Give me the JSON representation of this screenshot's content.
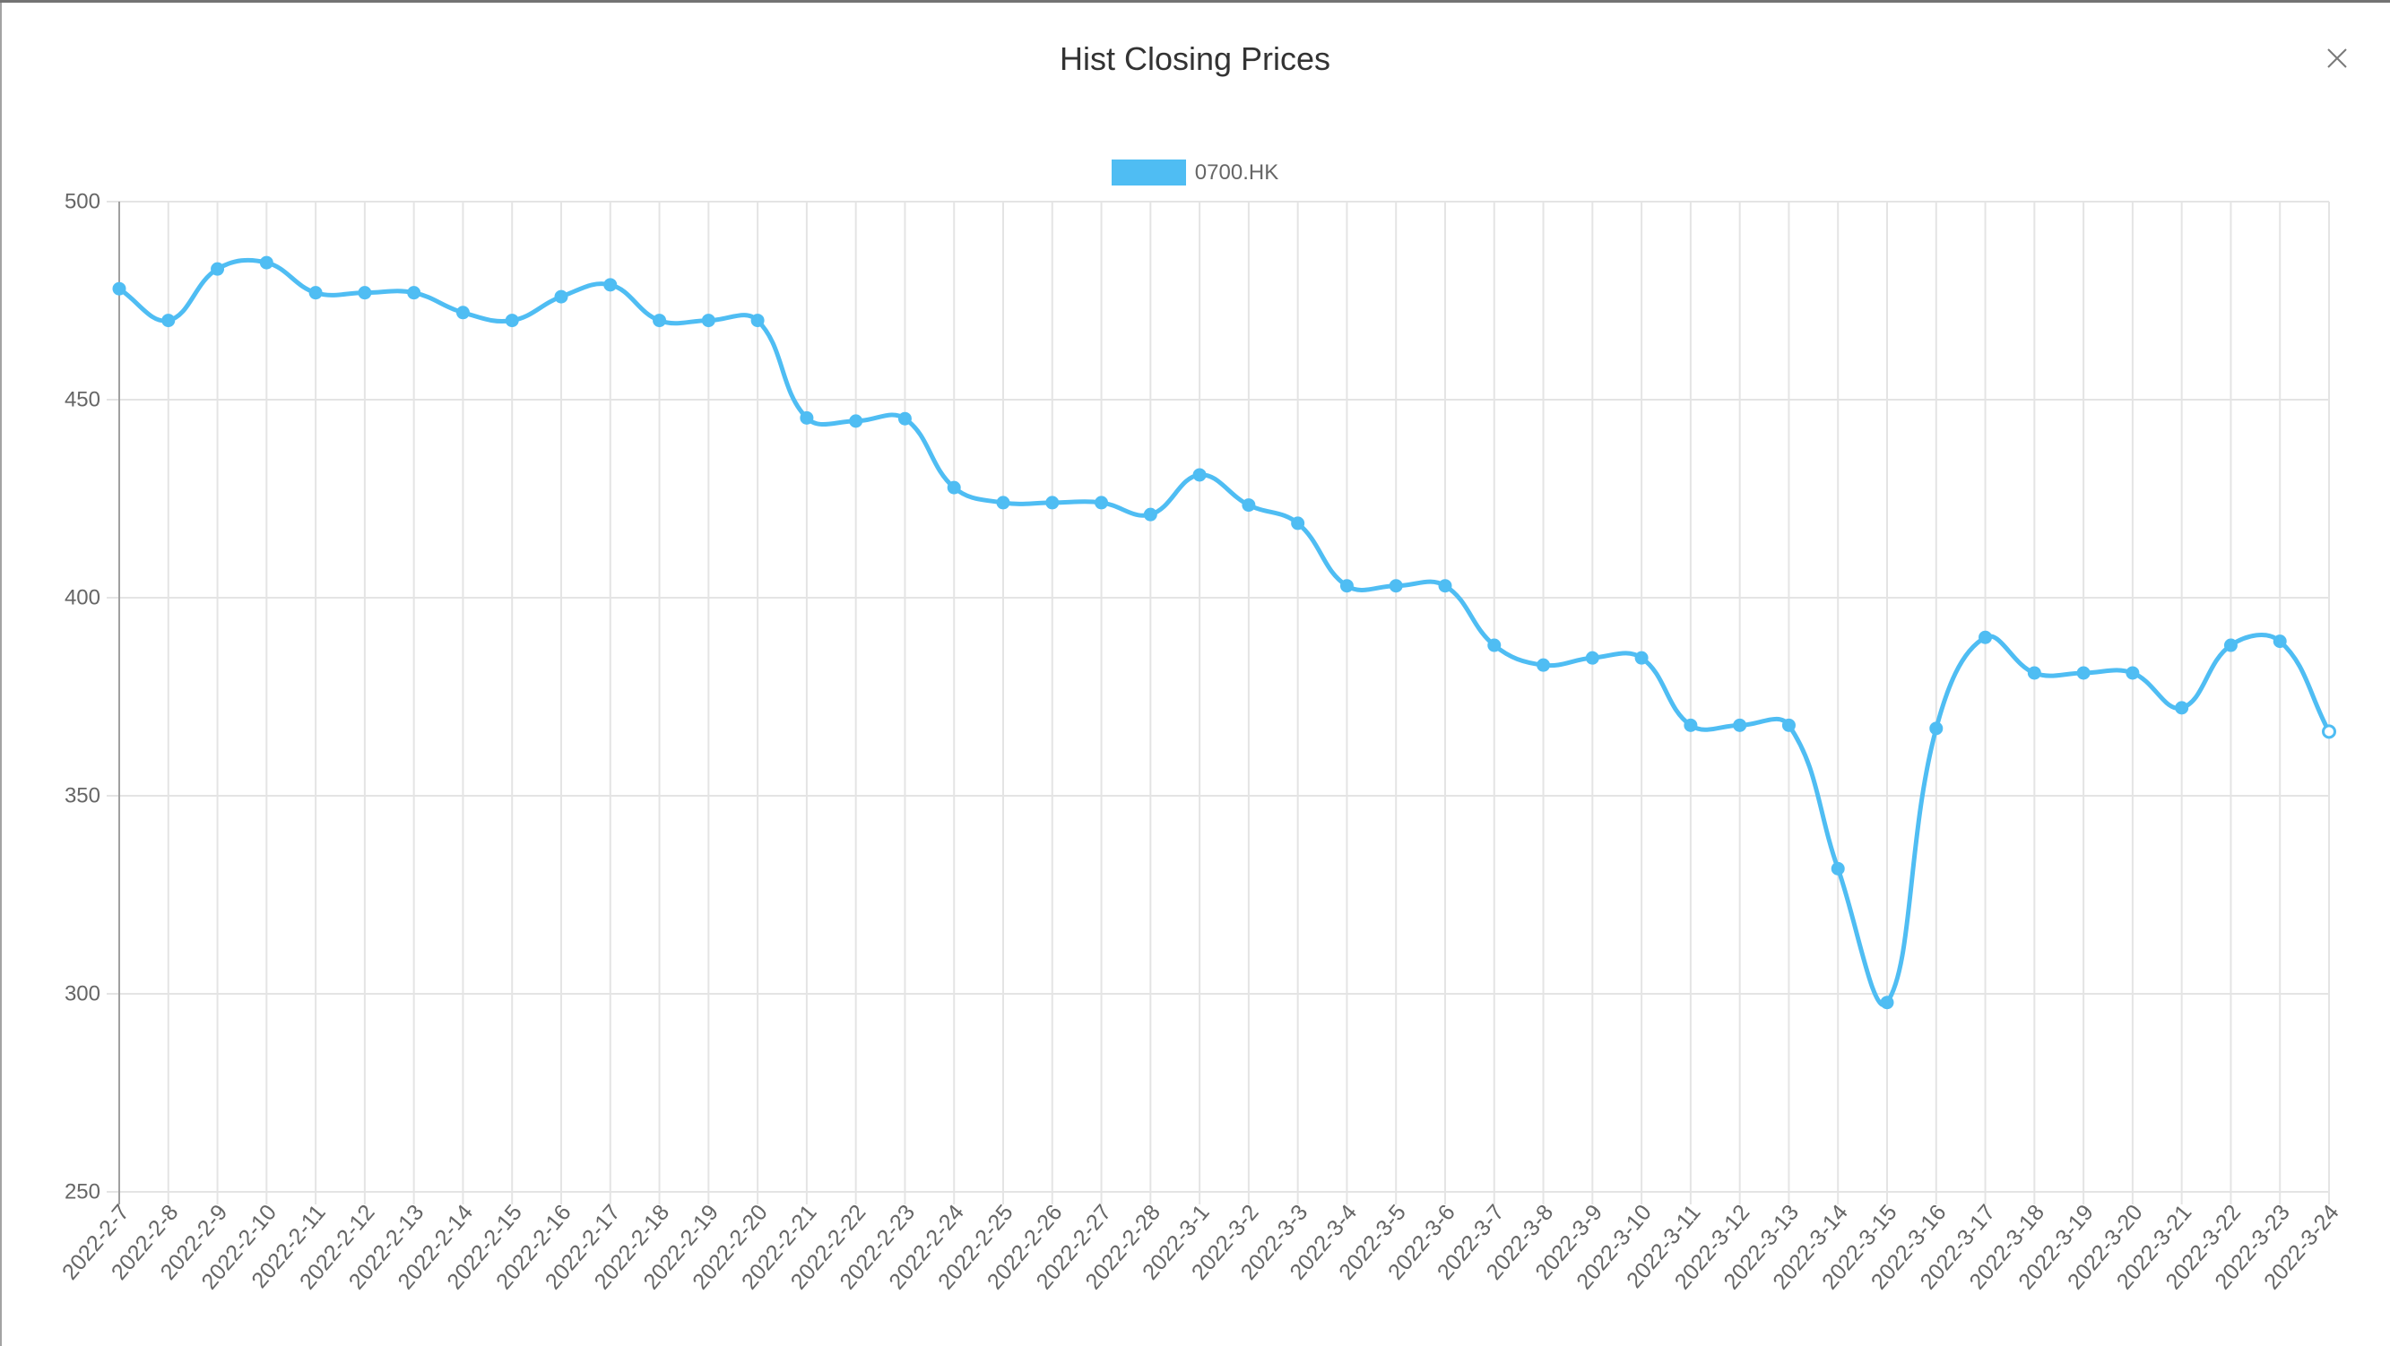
{
  "modal": {
    "close_icon": "close-icon"
  },
  "colors": {
    "series": "#4fbdf3",
    "grid": "#e4e4e4",
    "axis": "#a0a0a0",
    "tick_text": "#666666",
    "title_text": "#333333"
  },
  "chart_data": {
    "type": "line",
    "title": "Hist Closing Prices",
    "xlabel": "",
    "ylabel": "",
    "categories": [
      "2022-2-7",
      "2022-2-8",
      "2022-2-9",
      "2022-2-10",
      "2022-2-11",
      "2022-2-12",
      "2022-2-13",
      "2022-2-14",
      "2022-2-15",
      "2022-2-16",
      "2022-2-17",
      "2022-2-18",
      "2022-2-19",
      "2022-2-20",
      "2022-2-21",
      "2022-2-22",
      "2022-2-23",
      "2022-2-24",
      "2022-2-25",
      "2022-2-26",
      "2022-2-27",
      "2022-2-28",
      "2022-3-1",
      "2022-3-2",
      "2022-3-3",
      "2022-3-4",
      "2022-3-5",
      "2022-3-6",
      "2022-3-7",
      "2022-3-8",
      "2022-3-9",
      "2022-3-10",
      "2022-3-11",
      "2022-3-12",
      "2022-3-13",
      "2022-3-14",
      "2022-3-15",
      "2022-3-16",
      "2022-3-17",
      "2022-3-18",
      "2022-3-19",
      "2022-3-20",
      "2022-3-21",
      "2022-3-22",
      "2022-3-23",
      "2022-3-24"
    ],
    "series": [
      {
        "name": "0700.HK",
        "values": [
          478,
          470,
          483,
          484.6,
          477,
          477,
          477,
          472,
          470,
          476,
          479,
          470,
          470,
          470,
          445.4,
          444.6,
          445.2,
          427.8,
          424,
          424,
          424,
          421,
          431,
          423.4,
          418.8,
          403,
          403,
          403,
          388,
          383,
          384.8,
          384.8,
          367.8,
          367.8,
          367.8,
          331.6,
          297.8,
          367,
          390,
          381,
          381,
          381,
          372.2,
          388,
          389,
          366.2
        ]
      }
    ],
    "ylim": [
      250,
      500
    ],
    "yticks": [
      500,
      450,
      400,
      350,
      300,
      250
    ],
    "grid": true,
    "smooth": true,
    "markers": true,
    "legend": "top-center"
  }
}
